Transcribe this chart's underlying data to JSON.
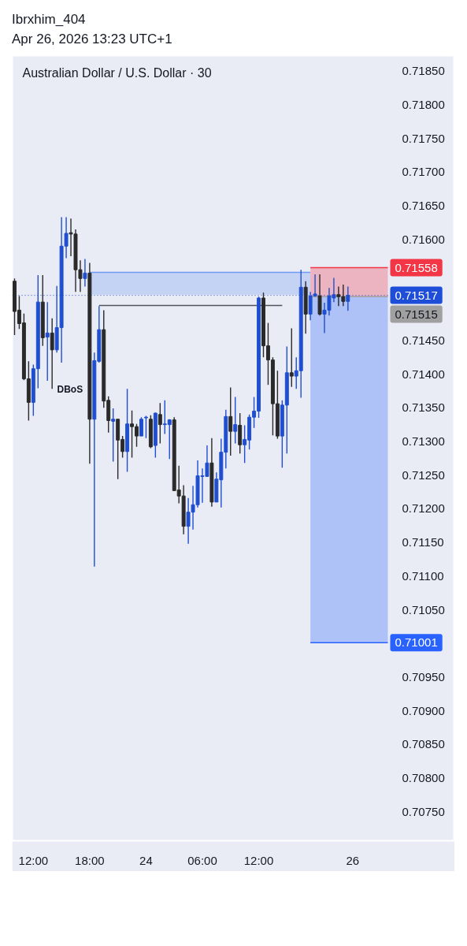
{
  "chart_data": {
    "type": "candlestick",
    "title": "Ibrxhim_404",
    "subtitle": "Apr 26, 2026 13:23 UTC+1",
    "categories": [
      null,
      null,
      null,
      null,
      "12:00",
      null,
      null,
      null,
      null,
      null,
      null,
      null,
      null,
      null,
      null,
      null,
      "18:00",
      null,
      null,
      null,
      null,
      null,
      null,
      null,
      null,
      null,
      null,
      null,
      "24",
      null,
      null,
      null,
      null,
      null,
      null,
      null,
      null,
      null,
      null,
      null,
      "06:00",
      null,
      null,
      null,
      null,
      null,
      null,
      null,
      null,
      null,
      null,
      null,
      "12:00",
      null,
      null,
      null,
      null,
      null,
      null,
      null,
      null,
      null,
      null,
      null,
      null,
      null,
      null,
      null,
      null,
      null,
      null,
      null,
      "26",
      null,
      null,
      null,
      null,
      null,
      null,
      null
    ],
    "ohlc": [
      [
        0.71538,
        0.71542,
        0.71458,
        0.71493
      ],
      [
        0.71495,
        0.71516,
        0.71467,
        0.71475
      ],
      [
        0.71476,
        0.7149,
        0.71391,
        0.71393
      ],
      [
        0.71393,
        0.71419,
        0.71331,
        0.71358
      ],
      [
        0.71358,
        0.71414,
        0.71338,
        0.71408
      ],
      [
        0.71408,
        0.71547,
        0.71379,
        0.71507
      ],
      [
        0.71507,
        0.71547,
        0.71442,
        0.71454
      ],
      [
        0.71455,
        0.71507,
        0.7139,
        0.71461
      ],
      [
        0.71461,
        0.71483,
        0.71378,
        0.71436
      ],
      [
        0.71436,
        0.71531,
        0.71432,
        0.71469
      ],
      [
        0.71469,
        0.71633,
        0.71417,
        0.7159
      ],
      [
        0.7159,
        0.71633,
        0.71572,
        0.71609
      ],
      [
        0.7161,
        0.71631,
        0.71575,
        0.71608
      ],
      [
        0.71608,
        0.71615,
        0.71522,
        0.71555
      ],
      [
        0.71555,
        0.71569,
        0.71522,
        0.71542
      ],
      [
        0.71542,
        0.71571,
        0.7153,
        0.7155
      ],
      [
        0.7155,
        0.71565,
        0.71267,
        0.71333
      ],
      [
        0.71333,
        0.71432,
        0.71114,
        0.7142
      ],
      [
        0.71419,
        0.71501,
        0.71417,
        0.71466
      ],
      [
        0.71466,
        0.71495,
        0.7135,
        0.7136
      ],
      [
        0.71361,
        0.71367,
        0.71313,
        0.71331
      ],
      [
        0.7133,
        0.71349,
        0.7127,
        0.71333
      ],
      [
        0.71333,
        0.71333,
        0.71244,
        0.71302
      ],
      [
        0.71303,
        0.71308,
        0.71276,
        0.71285
      ],
      [
        0.71285,
        0.71378,
        0.71255,
        0.71326
      ],
      [
        0.71326,
        0.71346,
        0.71276,
        0.71322
      ],
      [
        0.71322,
        0.71326,
        0.71292,
        0.71308
      ],
      [
        0.71308,
        0.71336,
        0.71308,
        0.71333
      ],
      [
        0.71335,
        0.71338,
        0.71305,
        0.71336
      ],
      [
        0.71333,
        0.71339,
        0.7129,
        0.71292
      ],
      [
        0.71294,
        0.71343,
        0.71276,
        0.71342
      ],
      [
        0.7134,
        0.71357,
        0.71297,
        0.71325
      ],
      [
        0.71325,
        0.71361,
        0.71311,
        0.71326
      ],
      [
        0.71325,
        0.71333,
        0.71274,
        0.71332
      ],
      [
        0.71332,
        0.71336,
        0.71227,
        0.71227
      ],
      [
        0.71228,
        0.71264,
        0.71208,
        0.71219
      ],
      [
        0.71219,
        0.71235,
        0.71162,
        0.71174
      ],
      [
        0.71174,
        0.71216,
        0.71148,
        0.71195
      ],
      [
        0.71195,
        0.71234,
        0.71169,
        0.71206
      ],
      [
        0.71206,
        0.71272,
        0.71202,
        0.71249
      ],
      [
        0.71248,
        0.7126,
        0.71209,
        0.71249
      ],
      [
        0.71248,
        0.71294,
        0.71248,
        0.71268
      ],
      [
        0.71268,
        0.71305,
        0.71203,
        0.7121
      ],
      [
        0.7121,
        0.71254,
        0.7121,
        0.71244
      ],
      [
        0.71243,
        0.71304,
        0.71202,
        0.71284
      ],
      [
        0.71284,
        0.71347,
        0.7126,
        0.71337
      ],
      [
        0.71337,
        0.7138,
        0.71279,
        0.71315
      ],
      [
        0.71315,
        0.71366,
        0.71297,
        0.71325
      ],
      [
        0.71324,
        0.71342,
        0.71282,
        0.71295
      ],
      [
        0.71295,
        0.71324,
        0.71268,
        0.71303
      ],
      [
        0.71302,
        0.7134,
        0.71288,
        0.71336
      ],
      [
        0.71336,
        0.71366,
        0.7132,
        0.71345
      ],
      [
        0.71345,
        0.71515,
        0.71335,
        0.71513
      ],
      [
        0.71513,
        0.71521,
        0.71425,
        0.71442
      ],
      [
        0.71442,
        0.71476,
        0.71384,
        0.71421
      ],
      [
        0.71421,
        0.71425,
        0.71309,
        0.71356
      ],
      [
        0.71356,
        0.71405,
        0.71304,
        0.71308
      ],
      [
        0.71308,
        0.71361,
        0.71261,
        0.71354
      ],
      [
        0.71354,
        0.71441,
        0.71282,
        0.71402
      ],
      [
        0.71402,
        0.71468,
        0.71381,
        0.71397
      ],
      [
        0.71397,
        0.71425,
        0.71378,
        0.71405
      ],
      [
        0.71405,
        0.71555,
        0.71365,
        0.71529
      ],
      [
        0.71529,
        0.71538,
        0.7146,
        0.71489
      ],
      [
        0.71489,
        0.71522,
        0.7148,
        0.71516
      ],
      [
        0.71516,
        0.71548,
        0.71515,
        0.71519
      ],
      [
        0.71516,
        0.71548,
        0.71487,
        0.71489
      ],
      [
        0.71489,
        0.71506,
        0.71461,
        0.71495
      ],
      [
        0.71495,
        0.71528,
        0.71487,
        0.71516
      ],
      [
        0.71513,
        0.71543,
        0.71507,
        0.71518
      ],
      [
        0.71518,
        0.7153,
        0.71501,
        0.71515
      ],
      [
        0.71515,
        0.71533,
        0.71501,
        0.71508
      ],
      [
        0.71508,
        0.7153,
        0.71494,
        0.71517
      ],
      null,
      null,
      null,
      null,
      null,
      null,
      null,
      null
    ],
    "colors": [
      "#2a2a2a",
      "#2a2a2a",
      "#2a2a2a",
      "#2a2a2a",
      "#1f4fd0",
      "#1f4fd0",
      "#2a2a2a",
      "#1f4fd0",
      "#2a2a2a",
      "#1f4fd0",
      "#1f4fd0",
      "#1f4fd0",
      "#2a2a2a",
      "#2a2a2a",
      "#2a2a2a",
      "#1f4fd0",
      "#2a2a2a",
      "#1f4fd0",
      "#1f4fd0",
      "#2a2a2a",
      "#2a2a2a",
      "#1f4fd0",
      "#2a2a2a",
      "#2a2a2a",
      "#1f4fd0",
      "#2a2a2a",
      "#2a2a2a",
      "#1f4fd0",
      "#1f4fd0",
      "#2a2a2a",
      "#1f4fd0",
      "#2a2a2a",
      "#1f4fd0",
      "#1f4fd0",
      "#2a2a2a",
      "#2a2a2a",
      "#2a2a2a",
      "#1f4fd0",
      "#1f4fd0",
      "#1f4fd0",
      "#1f4fd0",
      "#1f4fd0",
      "#2a2a2a",
      "#1f4fd0",
      "#1f4fd0",
      "#1f4fd0",
      "#2a2a2a",
      "#1f4fd0",
      "#2a2a2a",
      "#1f4fd0",
      "#1f4fd0",
      "#1f4fd0",
      "#1f4fd0",
      "#2a2a2a",
      "#2a2a2a",
      "#2a2a2a",
      "#2a2a2a",
      "#1f4fd0",
      "#1f4fd0",
      "#2a2a2a",
      "#1f4fd0",
      "#1f4fd0",
      "#2a2a2a",
      "#1f4fd0",
      "#1f4fd0",
      "#2a2a2a",
      "#1f4fd0",
      "#1f4fd0",
      "#1f4fd0",
      "#2a2a2a",
      "#2a2a2a",
      "#1f4fd0",
      null,
      null,
      null,
      null,
      null,
      null,
      null,
      null
    ],
    "ylim": [
      0.70707,
      0.71873
    ],
    "yticks": [
      {
        "value": 0.7075,
        "label": "0.70750"
      },
      {
        "value": 0.708,
        "label": "0.70800"
      },
      {
        "value": 0.7085,
        "label": "0.70850"
      },
      {
        "value": 0.709,
        "label": "0.70900"
      },
      {
        "value": 0.7095,
        "label": "0.70950"
      },
      {
        "value": 0.7105,
        "label": "0.71050"
      },
      {
        "value": 0.711,
        "label": "0.71100"
      },
      {
        "value": 0.7115,
        "label": "0.71150"
      },
      {
        "value": 0.712,
        "label": "0.71200"
      },
      {
        "value": 0.7125,
        "label": "0.71250"
      },
      {
        "value": 0.713,
        "label": "0.71300"
      },
      {
        "value": 0.7135,
        "label": "0.71350"
      },
      {
        "value": 0.714,
        "label": "0.71400"
      },
      {
        "value": 0.7145,
        "label": "0.71450"
      },
      {
        "value": 0.716,
        "label": "0.71600"
      },
      {
        "value": 0.7165,
        "label": "0.71650"
      },
      {
        "value": 0.717,
        "label": "0.71700"
      },
      {
        "value": 0.7175,
        "label": "0.71750"
      },
      {
        "value": 0.718,
        "label": "0.71800"
      },
      {
        "value": 0.7185,
        "label": "0.71850"
      }
    ],
    "grid": false,
    "series": [
      {
        "type": "line",
        "color": "#709af3",
        "values": [
          null,
          null,
          null,
          null,
          null,
          null,
          null,
          null,
          null,
          null,
          null,
          null,
          null,
          null,
          null,
          null,
          0.71551,
          0.71551,
          0.71551,
          0.71551,
          0.71551,
          0.71551,
          0.71551,
          0.71551,
          0.71551,
          0.71551,
          0.71551,
          0.71551,
          0.71551,
          0.71551,
          0.71551,
          0.71551,
          0.71551,
          0.71551,
          0.71551,
          0.71551,
          0.71551,
          0.71551,
          0.71551,
          0.71551,
          0.71551,
          0.71551,
          0.71551,
          0.71551,
          0.71551,
          0.71551,
          0.71551,
          0.71551,
          0.71551,
          0.71551,
          0.71551,
          0.71551,
          0.71551,
          0.71551,
          0.71551,
          0.71551,
          0.71551,
          0.71551,
          0.71551,
          0.71551,
          0.71551,
          0.71551,
          0.71551,
          0.71551,
          null,
          null,
          null,
          null,
          null,
          null,
          null,
          null,
          null,
          null,
          null,
          null,
          null,
          null,
          null,
          null
        ],
        "lower": [
          null,
          null,
          null,
          null,
          null,
          null,
          null,
          null,
          null,
          null,
          null,
          null,
          null,
          null,
          null,
          null,
          0.71518,
          0.71518,
          0.71518,
          0.71518,
          0.71518,
          0.71518,
          0.71518,
          0.71518,
          0.71518,
          0.71518,
          0.71518,
          0.71518,
          0.71518,
          0.71518,
          0.71518,
          0.71518,
          0.71518,
          0.71518,
          0.71518,
          0.71518,
          0.71518,
          0.71518,
          0.71518,
          0.71518,
          0.71518,
          0.71518,
          0.71518,
          0.71518,
          0.71518,
          0.71518,
          0.71518,
          0.71518,
          0.71518,
          0.71518,
          0.71518,
          0.71518,
          0.71518,
          0.71518,
          0.71518,
          0.71518,
          0.71518,
          0.71518,
          0.71518,
          0.71518,
          0.71518,
          0.71518,
          0.71518,
          0.71518,
          null,
          null,
          null,
          null,
          null,
          null,
          null,
          null,
          null,
          null,
          null,
          null,
          null,
          null,
          null,
          null
        ],
        "upper": [
          null,
          null,
          null,
          null,
          null,
          null,
          null,
          null,
          null,
          null,
          null,
          null,
          null,
          null,
          null,
          null,
          0.71551,
          0.71551,
          0.71551,
          0.71551,
          0.71551,
          0.71551,
          0.71551,
          0.71551,
          0.71551,
          0.71551,
          0.71551,
          0.71551,
          0.71551,
          0.71551,
          0.71551,
          0.71551,
          0.71551,
          0.71551,
          0.71551,
          0.71551,
          0.71551,
          0.71551,
          0.71551,
          0.71551,
          0.71551,
          0.71551,
          0.71551,
          0.71551,
          0.71551,
          0.71551,
          0.71551,
          0.71551,
          0.71551,
          0.71551,
          0.71551,
          0.71551,
          0.71551,
          0.71551,
          0.71551,
          0.71551,
          0.71551,
          0.71551,
          0.71551,
          0.71551,
          0.71551,
          0.71551,
          0.71551,
          0.71551,
          null,
          null,
          null,
          null,
          null,
          null,
          null,
          null,
          null,
          null,
          null,
          null,
          null,
          null,
          null,
          null
        ]
      },
      {
        "type": "line",
        "color": "#f23645",
        "values": [
          null,
          null,
          null,
          null,
          null,
          null,
          null,
          null,
          null,
          null,
          null,
          null,
          null,
          null,
          null,
          null,
          null,
          null,
          null,
          null,
          null,
          null,
          null,
          null,
          null,
          null,
          null,
          null,
          null,
          null,
          null,
          null,
          null,
          null,
          null,
          null,
          null,
          null,
          null,
          null,
          null,
          null,
          null,
          null,
          null,
          null,
          null,
          null,
          null,
          null,
          null,
          null,
          null,
          null,
          null,
          null,
          null,
          null,
          null,
          null,
          null,
          null,
          null,
          0.71558,
          0.71558,
          0.71558,
          0.71558,
          0.71558,
          0.71558,
          0.71558,
          0.71558,
          0.71558,
          0.71558,
          0.71558,
          0.71558,
          0.71558,
          0.71558,
          0.71558,
          0.71558,
          0.71558
        ],
        "lower": [
          null,
          null,
          null,
          null,
          null,
          null,
          null,
          null,
          null,
          null,
          null,
          null,
          null,
          null,
          null,
          null,
          null,
          null,
          null,
          null,
          null,
          null,
          null,
          null,
          null,
          null,
          null,
          null,
          null,
          null,
          null,
          null,
          null,
          null,
          null,
          null,
          null,
          null,
          null,
          null,
          null,
          null,
          null,
          null,
          null,
          null,
          null,
          null,
          null,
          null,
          null,
          null,
          null,
          null,
          null,
          null,
          null,
          null,
          null,
          null,
          null,
          null,
          null,
          0.71515,
          0.71515,
          0.71515,
          0.71515,
          0.71515,
          0.71515,
          0.71515,
          0.71515,
          0.71515,
          0.71515,
          0.71515,
          0.71515,
          0.71515,
          0.71515,
          0.71515,
          0.71515,
          0.71515
        ],
        "upper": [
          null,
          null,
          null,
          null,
          null,
          null,
          null,
          null,
          null,
          null,
          null,
          null,
          null,
          null,
          null,
          null,
          null,
          null,
          null,
          null,
          null,
          null,
          null,
          null,
          null,
          null,
          null,
          null,
          null,
          null,
          null,
          null,
          null,
          null,
          null,
          null,
          null,
          null,
          null,
          null,
          null,
          null,
          null,
          null,
          null,
          null,
          null,
          null,
          null,
          null,
          null,
          null,
          null,
          null,
          null,
          null,
          null,
          null,
          null,
          null,
          null,
          null,
          null,
          0.71558,
          0.71558,
          0.71558,
          0.71558,
          0.71558,
          0.71558,
          0.71558,
          0.71558,
          0.71558,
          0.71558,
          0.71558,
          0.71558,
          0.71558,
          0.71558,
          0.71558,
          0.71558,
          0.71558
        ],
        "value_labels": [
          null,
          null,
          null,
          null,
          null,
          null,
          null,
          null,
          null,
          null,
          null,
          null,
          null,
          null,
          null,
          null,
          null,
          null,
          null,
          null,
          null,
          null,
          null,
          null,
          null,
          null,
          null,
          null,
          null,
          null,
          null,
          null,
          null,
          null,
          null,
          null,
          null,
          null,
          null,
          null,
          null,
          null,
          null,
          null,
          null,
          null,
          null,
          null,
          null,
          null,
          null,
          null,
          null,
          null,
          null,
          null,
          null,
          null,
          null,
          null,
          null,
          null,
          null,
          null,
          null,
          null,
          null,
          null,
          null,
          null,
          null,
          null,
          null,
          null,
          null,
          null,
          null,
          null,
          null,
          "0.71558"
        ]
      },
      {
        "type": "line",
        "color": "#2962ff",
        "values": [
          null,
          null,
          null,
          null,
          null,
          null,
          null,
          null,
          null,
          null,
          null,
          null,
          null,
          null,
          null,
          null,
          null,
          null,
          null,
          null,
          null,
          null,
          null,
          null,
          null,
          null,
          null,
          null,
          null,
          null,
          null,
          null,
          null,
          null,
          null,
          null,
          null,
          null,
          null,
          null,
          null,
          null,
          null,
          null,
          null,
          null,
          null,
          null,
          null,
          null,
          null,
          null,
          null,
          null,
          null,
          null,
          null,
          null,
          null,
          null,
          null,
          null,
          null,
          0.71001,
          0.71001,
          0.71001,
          0.71001,
          0.71001,
          0.71001,
          0.71001,
          0.71001,
          0.71001,
          0.71001,
          0.71001,
          0.71001,
          0.71001,
          0.71001,
          0.71001,
          0.71001,
          0.71001
        ],
        "lower": [
          null,
          null,
          null,
          null,
          null,
          null,
          null,
          null,
          null,
          null,
          null,
          null,
          null,
          null,
          null,
          null,
          null,
          null,
          null,
          null,
          null,
          null,
          null,
          null,
          null,
          null,
          null,
          null,
          null,
          null,
          null,
          null,
          null,
          null,
          null,
          null,
          null,
          null,
          null,
          null,
          null,
          null,
          null,
          null,
          null,
          null,
          null,
          null,
          null,
          null,
          null,
          null,
          null,
          null,
          null,
          null,
          null,
          null,
          null,
          null,
          null,
          null,
          null,
          0.71001,
          0.71001,
          0.71001,
          0.71001,
          0.71001,
          0.71001,
          0.71001,
          0.71001,
          0.71001,
          0.71001,
          0.71001,
          0.71001,
          0.71001,
          0.71001,
          0.71001,
          0.71001,
          0.71001
        ],
        "upper": [
          null,
          null,
          null,
          null,
          null,
          null,
          null,
          null,
          null,
          null,
          null,
          null,
          null,
          null,
          null,
          null,
          null,
          null,
          null,
          null,
          null,
          null,
          null,
          null,
          null,
          null,
          null,
          null,
          null,
          null,
          null,
          null,
          null,
          null,
          null,
          null,
          null,
          null,
          null,
          null,
          null,
          null,
          null,
          null,
          null,
          null,
          null,
          null,
          null,
          null,
          null,
          null,
          null,
          null,
          null,
          null,
          null,
          null,
          null,
          null,
          null,
          null,
          null,
          0.71515,
          0.71515,
          0.71515,
          0.71515,
          0.71515,
          0.71515,
          0.71515,
          0.71515,
          0.71515,
          0.71515,
          0.71515,
          0.71515,
          0.71515,
          0.71515,
          0.71515,
          0.71515,
          0.71515
        ],
        "value_labels": [
          null,
          null,
          null,
          null,
          null,
          null,
          null,
          null,
          null,
          null,
          null,
          null,
          null,
          null,
          null,
          null,
          null,
          null,
          null,
          null,
          null,
          null,
          null,
          null,
          null,
          null,
          null,
          null,
          null,
          null,
          null,
          null,
          null,
          null,
          null,
          null,
          null,
          null,
          null,
          null,
          null,
          null,
          null,
          null,
          null,
          null,
          null,
          null,
          null,
          null,
          null,
          null,
          null,
          null,
          null,
          null,
          null,
          null,
          null,
          null,
          null,
          null,
          null,
          null,
          null,
          null,
          null,
          null,
          null,
          null,
          null,
          null,
          null,
          null,
          null,
          null,
          null,
          null,
          null,
          "0.71001"
        ]
      },
      {
        "type": "line",
        "color": "#a0a0a0",
        "values": [
          null,
          null,
          null,
          null,
          null,
          null,
          null,
          null,
          null,
          null,
          null,
          null,
          null,
          null,
          null,
          null,
          null,
          null,
          null,
          null,
          null,
          null,
          null,
          null,
          null,
          null,
          null,
          null,
          null,
          null,
          null,
          null,
          null,
          null,
          null,
          null,
          null,
          null,
          null,
          null,
          null,
          null,
          null,
          null,
          null,
          null,
          null,
          null,
          null,
          null,
          null,
          null,
          null,
          null,
          null,
          null,
          null,
          null,
          null,
          null,
          null,
          null,
          null,
          0.71515,
          0.71515,
          0.71515,
          0.71515,
          0.71515,
          0.71515,
          0.71515,
          0.71515,
          0.71515,
          0.71515,
          0.71515,
          0.71515,
          0.71515,
          0.71515,
          0.71515,
          0.71515,
          0.71515
        ],
        "value_labels": [
          null,
          null,
          null,
          null,
          null,
          null,
          null,
          null,
          null,
          null,
          null,
          null,
          null,
          null,
          null,
          null,
          null,
          null,
          null,
          null,
          null,
          null,
          null,
          null,
          null,
          null,
          null,
          null,
          null,
          null,
          null,
          null,
          null,
          null,
          null,
          null,
          null,
          null,
          null,
          null,
          null,
          null,
          null,
          null,
          null,
          null,
          null,
          null,
          null,
          null,
          null,
          null,
          null,
          null,
          null,
          null,
          null,
          null,
          null,
          null,
          null,
          null,
          null,
          null,
          null,
          null,
          null,
          null,
          null,
          null,
          null,
          null,
          null,
          null,
          null,
          null,
          null,
          null,
          null,
          "0.71515"
        ]
      },
      {
        "type": "line",
        "color": "#50535e",
        "values": [
          null,
          null,
          null,
          null,
          null,
          null,
          null,
          null,
          null,
          null,
          null,
          null,
          null,
          null,
          null,
          null,
          null,
          null,
          0.71502,
          0.71502,
          0.71502,
          0.71502,
          0.71502,
          0.71502,
          0.71502,
          0.71502,
          0.71502,
          0.71502,
          0.71502,
          0.71502,
          0.71502,
          0.71502,
          0.71502,
          0.71502,
          0.71502,
          0.71502,
          0.71502,
          0.71502,
          0.71502,
          0.71502,
          0.71502,
          0.71502,
          0.71502,
          0.71502,
          0.71502,
          0.71502,
          0.71502,
          0.71502,
          0.71502,
          0.71502,
          0.71502,
          0.71502,
          0.71502,
          0.71502,
          0.71502,
          0.71502,
          0.71502,
          0.71502,
          null,
          null,
          null,
          null,
          null,
          null,
          null,
          null,
          null,
          null,
          null,
          null,
          null,
          null,
          null,
          null,
          null,
          null,
          null,
          null,
          null,
          null
        ]
      }
    ],
    "ref_lines": [
      {
        "axis": "y",
        "value": 0.71517,
        "label": "0.71517",
        "color": "#1e4ed8",
        "line_style": "dotted"
      }
    ],
    "annotations": [
      "Australian Dollar / U.S. Dollar · 30",
      "DBoS"
    ]
  }
}
